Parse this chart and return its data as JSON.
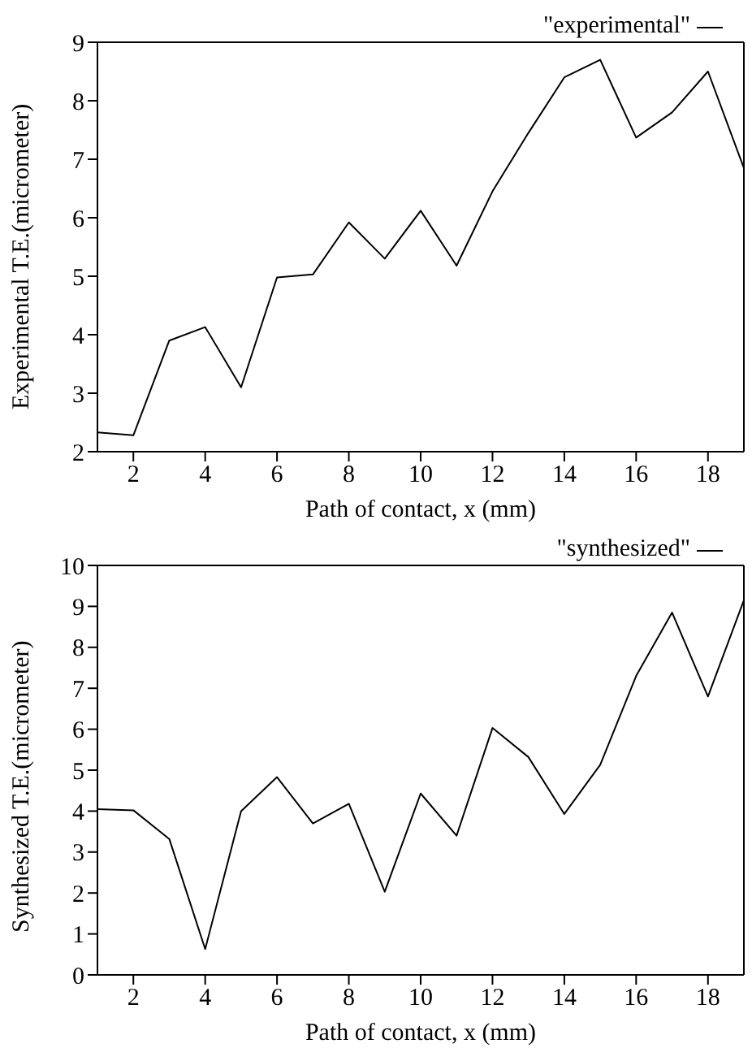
{
  "chart_data": [
    {
      "type": "line",
      "xlabel": "Path of contact, x (mm)",
      "ylabel": "Experimental T.E.(micrometer)",
      "x": [
        1,
        2,
        3,
        4,
        5,
        6,
        7,
        8,
        9,
        10,
        11,
        12,
        13,
        14,
        15,
        16,
        17,
        18,
        19
      ],
      "series": [
        {
          "name": "\"experimental\"",
          "color": "#000000",
          "values": [
            2.33,
            2.28,
            3.9,
            4.13,
            3.1,
            4.98,
            5.03,
            5.92,
            5.3,
            6.12,
            5.18,
            6.45,
            7.45,
            8.4,
            8.7,
            7.37,
            7.8,
            8.5,
            6.85
          ]
        }
      ],
      "xlim": [
        1,
        19
      ],
      "xticks": [
        2,
        4,
        6,
        8,
        10,
        12,
        14,
        16,
        18
      ],
      "ylim": [
        2,
        9
      ],
      "yticks": [
        2,
        3,
        4,
        5,
        6,
        7,
        8,
        9
      ],
      "legend": "top right",
      "grid": false,
      "marker": "none",
      "line_style": "solid"
    },
    {
      "type": "line",
      "xlabel": "Path of contact, x (mm)",
      "ylabel": "Synthesized T.E.(micrometer)",
      "x": [
        1,
        2,
        3,
        4,
        5,
        6,
        7,
        8,
        9,
        10,
        11,
        12,
        13,
        14,
        15,
        16,
        17,
        18,
        19
      ],
      "series": [
        {
          "name": "\"synthesized\"",
          "color": "#000000",
          "values": [
            4.05,
            4.02,
            3.32,
            0.63,
            4.0,
            4.83,
            3.7,
            4.18,
            2.03,
            4.43,
            3.4,
            6.03,
            5.32,
            3.93,
            5.13,
            7.3,
            8.85,
            6.8,
            9.15
          ]
        }
      ],
      "xlim": [
        1,
        19
      ],
      "xticks": [
        2,
        4,
        6,
        8,
        10,
        12,
        14,
        16,
        18
      ],
      "ylim": [
        0,
        10
      ],
      "yticks": [
        0,
        1,
        2,
        3,
        4,
        5,
        6,
        7,
        8,
        9,
        10
      ],
      "legend": "top right",
      "grid": false,
      "marker": "none",
      "line_style": "solid"
    }
  ]
}
